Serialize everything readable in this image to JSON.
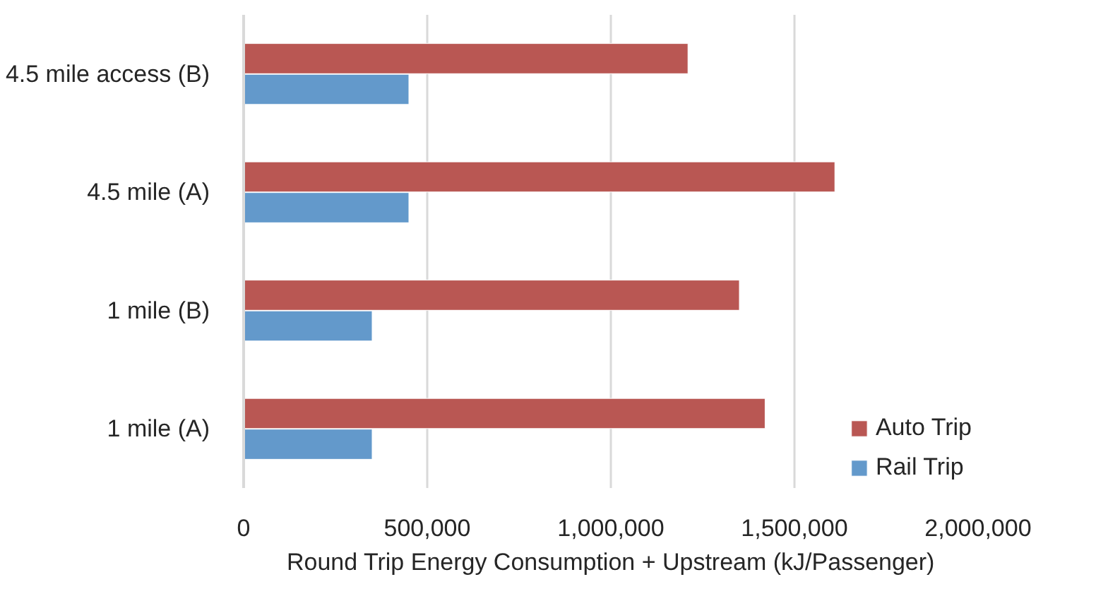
{
  "chart_data": {
    "type": "bar",
    "orientation": "horizontal",
    "xlabel": "Round Trip Energy Consumption + Upstream (kJ/Passenger)",
    "categories": [
      "4.5 mile access (B)",
      "4.5 mile (A)",
      "1 mile (B)",
      "1 mile (A)"
    ],
    "series": [
      {
        "name": "Auto Trip",
        "color": "#b95753",
        "values": [
          1210000,
          1610000,
          1350000,
          1420000
        ]
      },
      {
        "name": "Rail Trip",
        "color": "#6399cb",
        "values": [
          450000,
          450000,
          350000,
          350000
        ]
      }
    ],
    "xlim": [
      0,
      2000000
    ],
    "xticks": [
      0,
      {
        "value": 500000,
        "label": "500,000"
      },
      {
        "value": 1000000,
        "label": "1,000,000"
      },
      {
        "value": 1500000,
        "label": "1,500,000"
      },
      {
        "value": 2000000,
        "label": "2,000,000"
      }
    ],
    "grid": "x",
    "legend": "bottom right"
  }
}
